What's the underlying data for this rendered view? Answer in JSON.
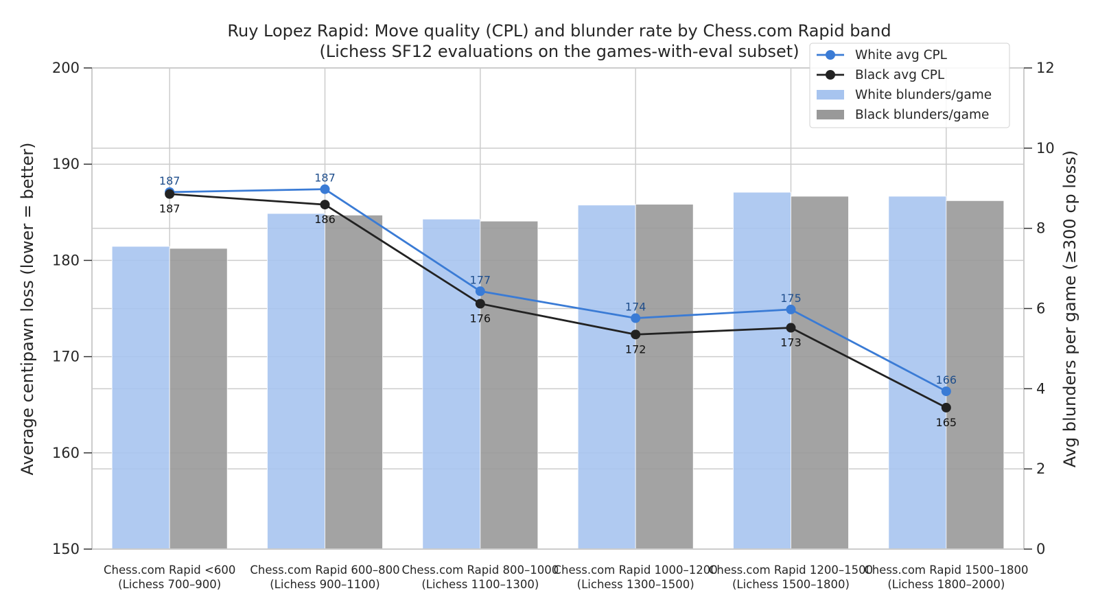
{
  "chart_data": {
    "type": "bar+line",
    "title": "Ruy Lopez Rapid: Move quality (CPL) and blunder rate by Chess.com Rapid band",
    "subtitle": "(Lichess SF12 evaluations on the games-with-eval subset)",
    "ylabel": "Average centipawn loss (lower = better)",
    "y2label": "Avg blunders per game (≥300 cp loss)",
    "ylim": [
      150,
      200
    ],
    "y2lim": [
      0,
      12
    ],
    "yticks": [
      "150",
      "160",
      "170",
      "180",
      "190",
      "200"
    ],
    "y2ticks": [
      "0",
      "2",
      "4",
      "6",
      "8",
      "10",
      "12"
    ],
    "grid": true,
    "legend_position": "top-right",
    "categories": [
      [
        "Chess.com Rapid <600",
        "(Lichess 700–900)"
      ],
      [
        "Chess.com Rapid 600–800",
        "(Lichess 900–1100)"
      ],
      [
        "Chess.com Rapid 800–1000",
        "(Lichess 1100–1300)"
      ],
      [
        "Chess.com Rapid 1000–1200",
        "(Lichess 1300–1500)"
      ],
      [
        "Chess.com Rapid 1200–1500",
        "(Lichess 1500–1800)"
      ],
      [
        "Chess.com Rapid 1500–1800",
        "(Lichess 1800–2000)"
      ]
    ],
    "lines": [
      {
        "name": "White avg CPL",
        "values": [
          187.1,
          187.4,
          176.8,
          174.0,
          174.9,
          166.4
        ],
        "labels": [
          "187",
          "187",
          "177",
          "174",
          "175",
          "166"
        ],
        "color": "#3a7bd5"
      },
      {
        "name": "Black avg CPL",
        "values": [
          186.9,
          185.8,
          175.5,
          172.3,
          173.0,
          164.7
        ],
        "labels": [
          "187",
          "186",
          "176",
          "172",
          "173",
          "165"
        ],
        "color": "#222222"
      }
    ],
    "bars": [
      {
        "name": "White blunders/game",
        "values": [
          7.55,
          8.37,
          8.23,
          8.58,
          8.9,
          8.8
        ],
        "color": "#a7c4ef"
      },
      {
        "name": "Black blunders/game",
        "values": [
          7.5,
          8.33,
          8.18,
          8.6,
          8.8,
          8.69
        ],
        "color": "#999999"
      }
    ]
  }
}
